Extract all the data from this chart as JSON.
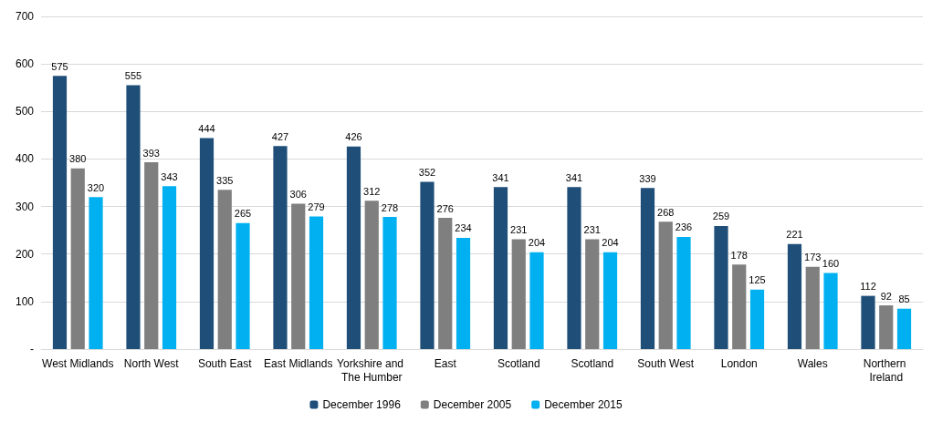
{
  "chart_data": {
    "type": "bar",
    "categories": [
      "West Midlands",
      "North West",
      "South East",
      "East Midlands",
      "Yorkshire and The Humber",
      "East",
      "Scotland",
      "Scotland",
      "South West",
      "London",
      "Wales",
      "Northern Ireland"
    ],
    "series": [
      {
        "name": "December 1996",
        "color": "#1f4e79",
        "values": [
          575,
          555,
          444,
          427,
          426,
          352,
          341,
          341,
          339,
          259,
          221,
          112
        ]
      },
      {
        "name": "December 2005",
        "color": "#7f7f7f",
        "values": [
          380,
          393,
          335,
          306,
          312,
          276,
          231,
          231,
          268,
          178,
          173,
          92
        ]
      },
      {
        "name": "December 2015",
        "color": "#00b0f0",
        "values": [
          320,
          343,
          265,
          279,
          278,
          234,
          204,
          204,
          236,
          125,
          160,
          85
        ]
      }
    ],
    "ylim": [
      0,
      700
    ],
    "yticks": [
      {
        "value": 0,
        "label": "-"
      },
      100,
      200,
      300,
      400,
      500,
      600,
      700
    ],
    "grid": "y",
    "legend": "bottom",
    "data_labels": true
  }
}
